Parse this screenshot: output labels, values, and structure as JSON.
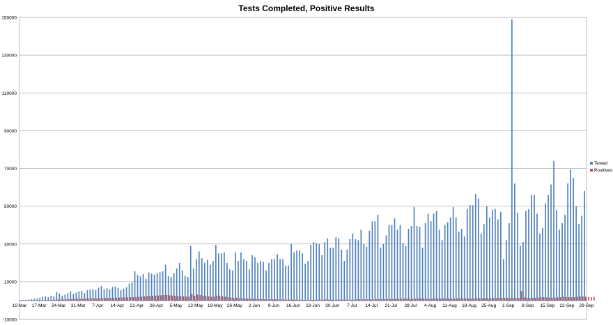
{
  "chart_data": {
    "type": "bar",
    "title": "Tests Completed, Positive Results",
    "xlabel": "",
    "ylabel": "",
    "ylim": [
      -10000,
      150000
    ],
    "yticks": [
      -10000,
      10000,
      30000,
      50000,
      70000,
      90000,
      110000,
      130000,
      150000
    ],
    "grid": true,
    "legend_position": "right",
    "x_tick_labels": [
      "10-Mar",
      "17-Mar",
      "24-Mar",
      "31-Mar",
      "7-Apr",
      "14-Apr",
      "21-Apr",
      "28-Apr",
      "5-May",
      "12-May",
      "19-May",
      "26-May",
      "2-Jun",
      "9-Jun",
      "16-Jun",
      "23-Jun",
      "30-Jun",
      "7-Jul",
      "14-Jul",
      "21-Jul",
      "28-Jul",
      "4-Aug",
      "11-Aug",
      "18-Aug",
      "25-Aug",
      "1-Sep",
      "8-Sep",
      "15-Sep",
      "22-Sep",
      "29-Sep"
    ],
    "start_date": "10-Mar",
    "series": [
      {
        "name": "Tested",
        "color": "#4f81bd",
        "values": [
          200,
          300,
          400,
          500,
          700,
          900,
          1200,
          1500,
          2000,
          2300,
          1800,
          2600,
          2200,
          4500,
          3800,
          2500,
          3200,
          3900,
          5000,
          3500,
          4200,
          4800,
          5200,
          4000,
          5500,
          5800,
          6000,
          5500,
          6800,
          7800,
          6000,
          6500,
          5800,
          7200,
          7500,
          6800,
          5500,
          6200,
          7000,
          9000,
          9500,
          15500,
          13500,
          12800,
          14000,
          11500,
          14800,
          14200,
          13800,
          14500,
          15000,
          15500,
          19000,
          13000,
          12500,
          14500,
          17000,
          20000,
          16000,
          13000,
          12500,
          29000,
          17000,
          22000,
          26000,
          22500,
          20000,
          21500,
          19000,
          21000,
          29500,
          25000,
          25000,
          25500,
          20000,
          16500,
          16000,
          25500,
          21000,
          25500,
          22000,
          21000,
          16500,
          24000,
          23000,
          20000,
          21000,
          20500,
          16000,
          20000,
          22000,
          22000,
          24500,
          22000,
          22000,
          18500,
          18500,
          30000,
          25500,
          26500,
          26500,
          25000,
          19500,
          21000,
          29500,
          31000,
          30500,
          30000,
          24000,
          31000,
          33000,
          28000,
          28000,
          33500,
          33000,
          27000,
          21000,
          27000,
          32500,
          35500,
          32500,
          32000,
          37500,
          30000,
          28500,
          37000,
          42000,
          42000,
          45500,
          28000,
          30000,
          34500,
          40000,
          40000,
          43500,
          37500,
          40000,
          30500,
          29000,
          38000,
          39500,
          49500,
          39500,
          39000,
          28000,
          41000,
          46000,
          42000,
          46000,
          47500,
          37500,
          32000,
          40000,
          41500,
          44000,
          49500,
          44000,
          36500,
          38000,
          34000,
          48500,
          50500,
          50500,
          56500,
          54000,
          35500,
          40500,
          50000,
          44000,
          48000,
          48500,
          43000,
          47000,
          22000,
          32000,
          41000,
          149000,
          62000,
          46500,
          29000,
          31000,
          47500,
          48500,
          56000,
          56000,
          46000,
          35500,
          38500,
          51500,
          56000,
          61500,
          74000,
          48000,
          37500,
          41000,
          45500,
          62000,
          69500,
          65000,
          50000,
          40500,
          45000,
          58000
        ]
      },
      {
        "name": "Positives",
        "color": "#c0504d",
        "values": [
          10,
          20,
          30,
          40,
          50,
          80,
          100,
          150,
          200,
          250,
          280,
          350,
          400,
          500,
          550,
          600,
          650,
          700,
          800,
          850,
          900,
          950,
          1000,
          1050,
          1100,
          1150,
          1200,
          1150,
          1250,
          1300,
          1350,
          1400,
          1350,
          1450,
          1500,
          1550,
          1600,
          1650,
          1700,
          1750,
          1800,
          1900,
          2000,
          2100,
          2200,
          2300,
          2400,
          2500,
          2600,
          2700,
          2800,
          2900,
          3000,
          2800,
          2600,
          2500,
          2400,
          2300,
          2200,
          2100,
          2000,
          3500,
          2500,
          3200,
          3000,
          2600,
          2400,
          2200,
          2000,
          2100,
          2600,
          2400,
          2200,
          2100,
          1800,
          1600,
          1400,
          1500,
          1300,
          1200,
          1100,
          1000,
          900,
          1000,
          900,
          800,
          800,
          700,
          600,
          700,
          650,
          650,
          600,
          600,
          550,
          500,
          500,
          550,
          500,
          450,
          450,
          400,
          400,
          380,
          400,
          420,
          450,
          500,
          500,
          550,
          500,
          450,
          400,
          450,
          500,
          550,
          500,
          450,
          450,
          500,
          600,
          700,
          700,
          650,
          600,
          600,
          650,
          700,
          750,
          800,
          850,
          800,
          800,
          850,
          900,
          900,
          950,
          1000,
          950,
          900,
          900,
          950,
          1000,
          1050,
          1000,
          950,
          900,
          950,
          1000,
          1050,
          1100,
          1100,
          1050,
          1000,
          1000,
          1050,
          1100,
          1150,
          1200,
          1100,
          1050,
          1000,
          1100,
          1200,
          1250,
          1300,
          1300,
          1250,
          1200,
          1300,
          1400,
          1450,
          1500,
          1450,
          1400,
          1350,
          1300,
          1350,
          1400,
          5000,
          1800,
          1500,
          1300,
          1400,
          1500,
          1600,
          1700,
          1800,
          1700,
          1600,
          1500,
          1600,
          1700,
          1800,
          2000,
          1900,
          1800,
          1700,
          1800,
          2000,
          2200,
          2100,
          2000,
          1900,
          1800,
          1900
        ]
      }
    ]
  }
}
